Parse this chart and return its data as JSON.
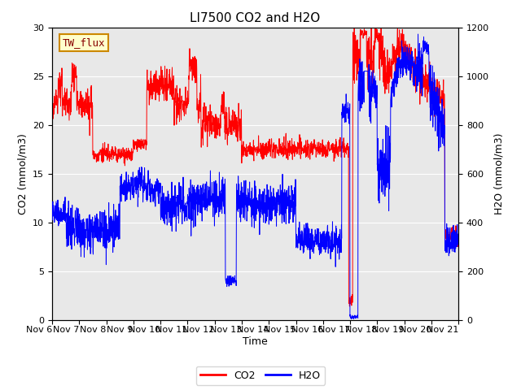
{
  "title": "LI7500 CO2 and H2O",
  "xlabel": "Time",
  "ylabel_left": "CO2 (mmol/m3)",
  "ylabel_right": "H2O (mmol/m3)",
  "annotation": "TW_flux",
  "co2_color": "#FF0000",
  "h2o_color": "#0000FF",
  "ylim_left": [
    0,
    30
  ],
  "ylim_right": [
    0,
    1200
  ],
  "yticks_left": [
    0,
    5,
    10,
    15,
    20,
    25,
    30
  ],
  "yticks_right": [
    0,
    200,
    400,
    600,
    800,
    1000,
    1200
  ],
  "bg_color": "#E8E8E8",
  "fig_color": "#FFFFFF",
  "grid_color": "#FFFFFF",
  "n_points": 2000,
  "legend_co2": "CO2",
  "legend_h2o": "H2O",
  "title_fontsize": 11,
  "axis_fontsize": 9,
  "tick_fontsize": 8
}
